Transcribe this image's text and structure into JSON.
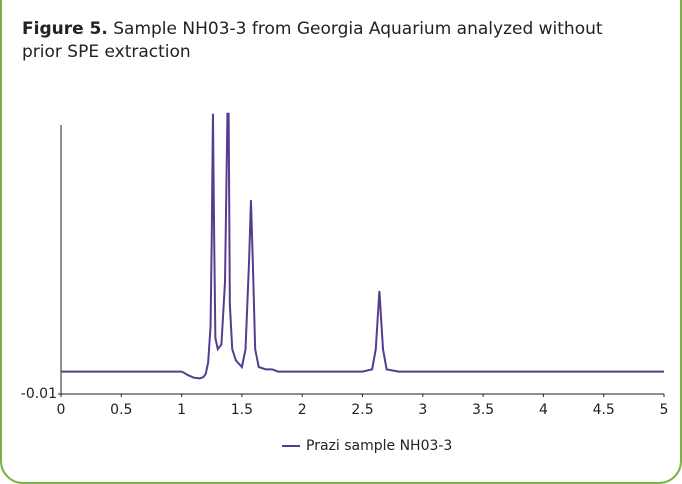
{
  "chart_data": {
    "type": "line",
    "figure_label": "Figure 5.",
    "title": "Sample NH03-3 from Georgia Aquarium analyzed without prior SPE extraction",
    "xlim": [
      0,
      5
    ],
    "ylim": [
      -0.01,
      0.11
    ],
    "xticks": [
      0,
      0.5,
      1,
      1.5,
      2,
      2.5,
      3,
      3.5,
      4,
      4.5,
      5
    ],
    "yticks": [
      -0.01
    ],
    "legend": "bottom",
    "x": [
      0,
      0.5,
      1,
      1.02,
      1.05,
      1.1,
      1.15,
      1.18,
      1.2,
      1.22,
      1.24,
      1.25,
      1.26,
      1.27,
      1.28,
      1.3,
      1.33,
      1.36,
      1.38,
      1.39,
      1.4,
      1.42,
      1.45,
      1.5,
      1.53,
      1.56,
      1.575,
      1.59,
      1.61,
      1.64,
      1.7,
      1.75,
      1.8,
      2,
      2.5,
      2.58,
      2.61,
      2.64,
      2.67,
      2.7,
      2.8,
      3,
      3.5,
      4,
      5
    ],
    "series": [
      {
        "name": "Prazi sample NH03-3",
        "color": "#553c8f",
        "values": [
          0,
          0,
          0,
          -0.0005,
          -0.0015,
          -0.0027,
          -0.003,
          -0.0025,
          -0.001,
          0.004,
          0.02,
          0.06,
          0.115,
          0.06,
          0.015,
          0.01,
          0.012,
          0.04,
          0.115,
          0.115,
          0.03,
          0.01,
          0.005,
          0.002,
          0.01,
          0.05,
          0.0765,
          0.05,
          0.01,
          0.002,
          0.001,
          0.001,
          0,
          0,
          0,
          0.001,
          0.01,
          0.036,
          0.01,
          0.001,
          0,
          0,
          0,
          0,
          0
        ]
      }
    ]
  }
}
